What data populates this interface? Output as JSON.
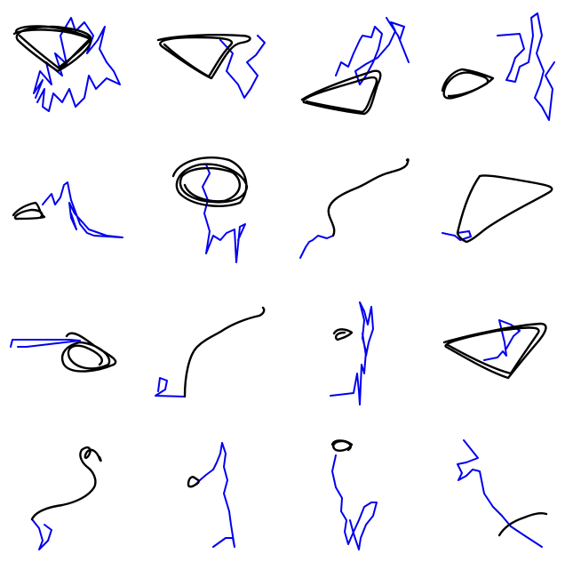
{
  "colors": {
    "background": "#ffffff",
    "blue_trace": "#0000ee",
    "black_trace": "#000000"
  },
  "panels": [
    {
      "name": "panel-1",
      "traces": [
        "blue",
        "black"
      ]
    },
    {
      "name": "panel-2",
      "traces": [
        "blue",
        "black"
      ]
    },
    {
      "name": "panel-3",
      "traces": [
        "blue",
        "black"
      ]
    },
    {
      "name": "panel-4",
      "traces": [
        "blue",
        "black"
      ]
    },
    {
      "name": "panel-5",
      "traces": [
        "blue",
        "black"
      ]
    },
    {
      "name": "panel-6",
      "traces": [
        "blue",
        "black"
      ]
    },
    {
      "name": "panel-7",
      "traces": [
        "blue",
        "black"
      ]
    },
    {
      "name": "panel-8",
      "traces": [
        "blue",
        "black"
      ]
    },
    {
      "name": "panel-9",
      "traces": [
        "blue",
        "black"
      ]
    },
    {
      "name": "panel-10",
      "traces": [
        "blue",
        "black"
      ]
    },
    {
      "name": "panel-11",
      "traces": [
        "blue",
        "black"
      ]
    },
    {
      "name": "panel-12",
      "traces": [
        "blue",
        "black"
      ]
    },
    {
      "name": "panel-13",
      "traces": [
        "blue",
        "black"
      ]
    },
    {
      "name": "panel-14",
      "traces": [
        "blue",
        "black"
      ]
    },
    {
      "name": "panel-15",
      "traces": [
        "blue",
        "black"
      ]
    },
    {
      "name": "panel-16",
      "traces": [
        "blue",
        "black"
      ]
    }
  ]
}
